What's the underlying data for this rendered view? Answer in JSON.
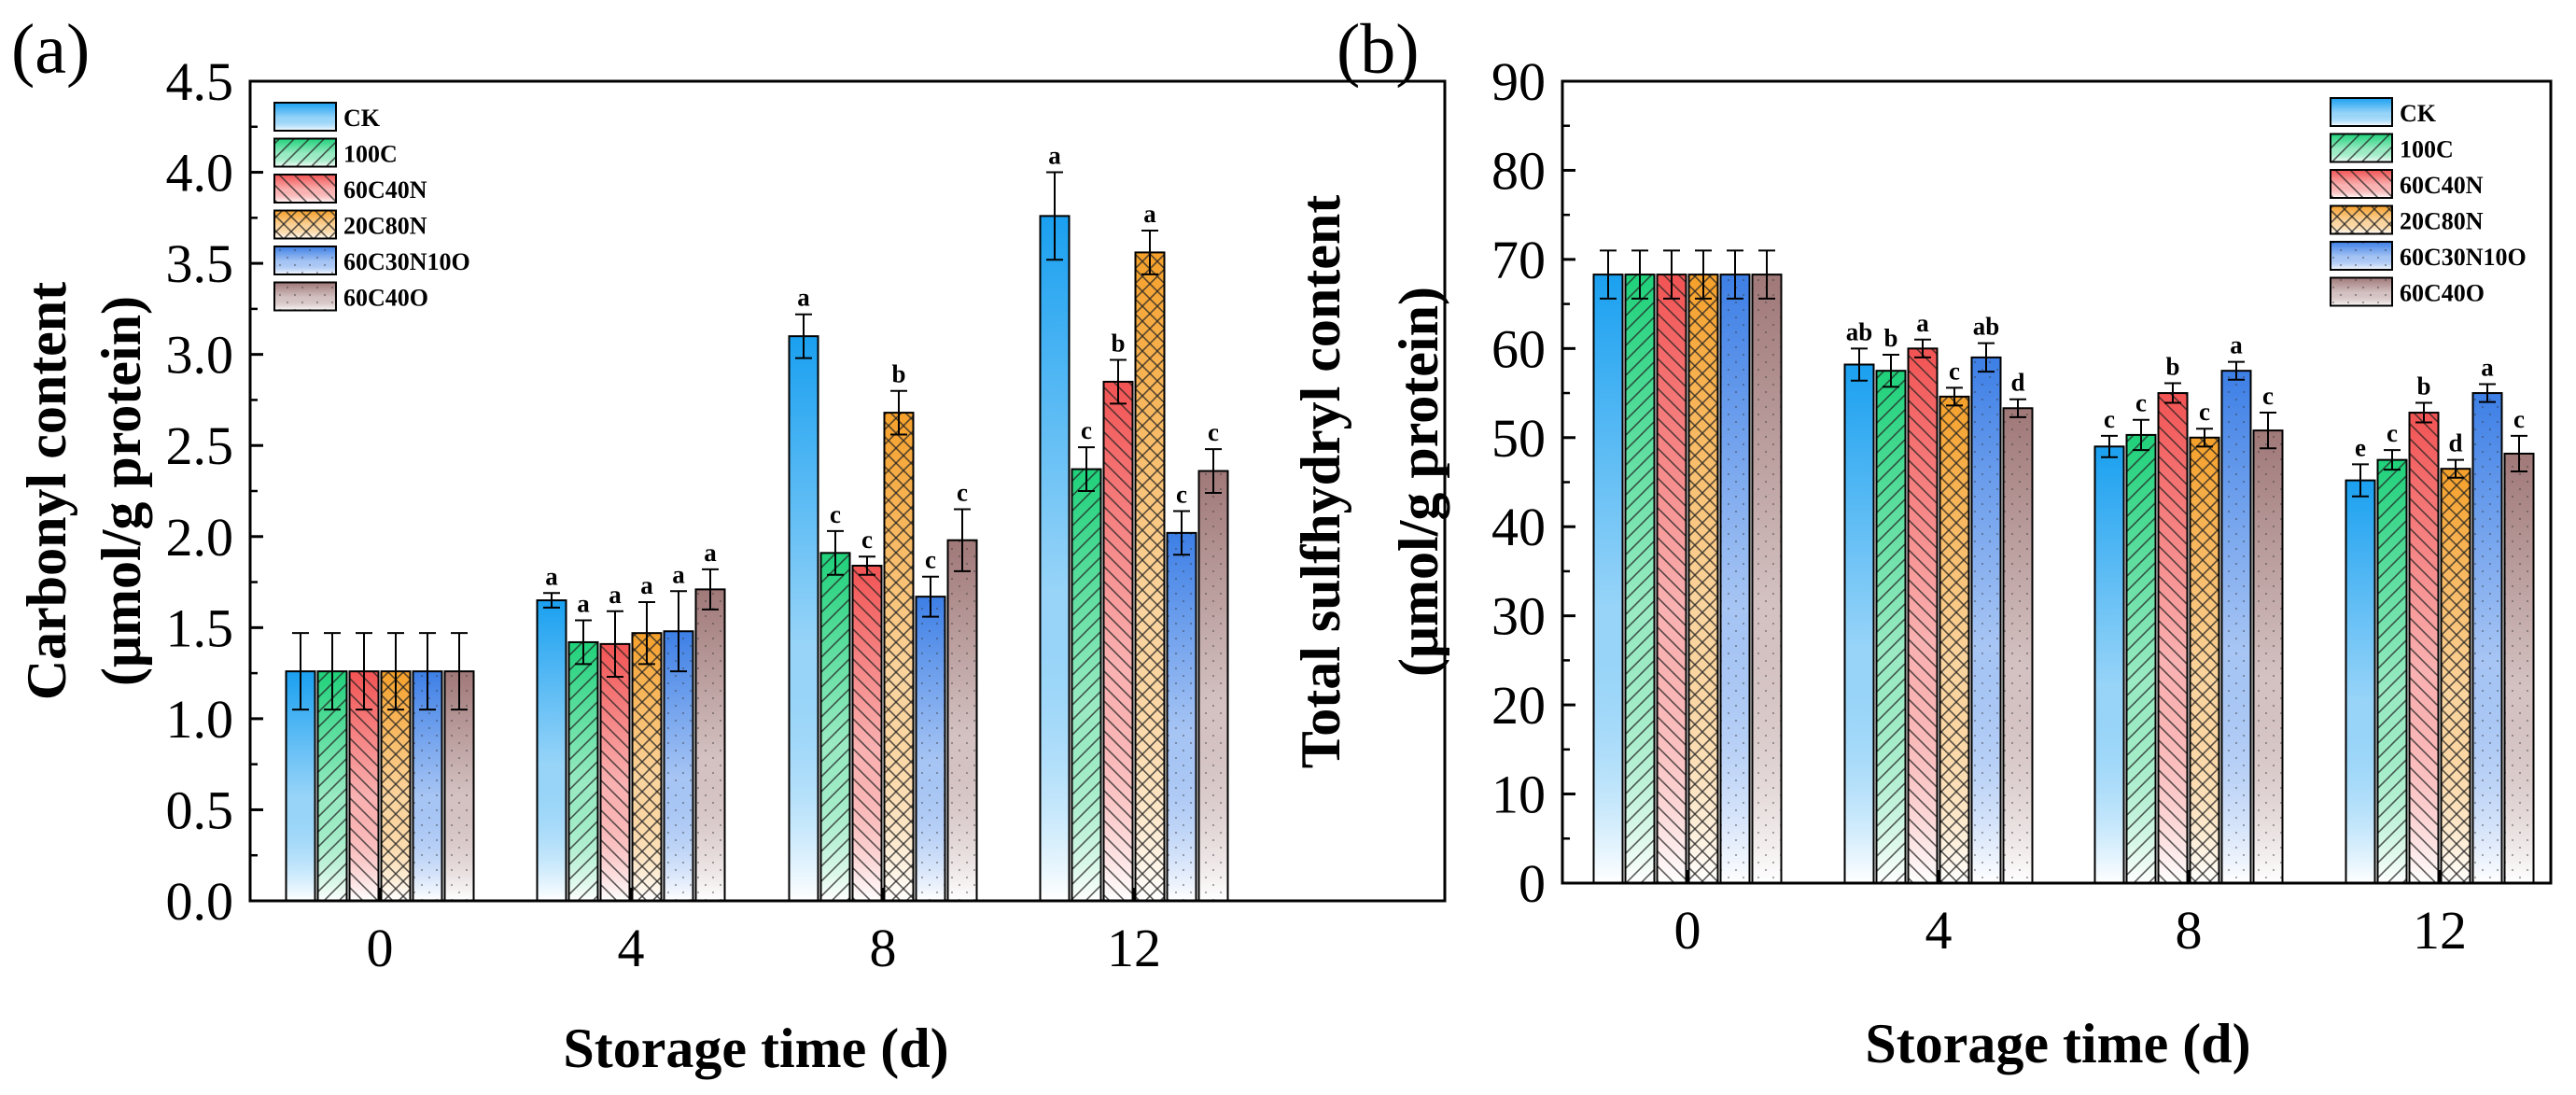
{
  "chart_data": [
    {
      "type": "bar",
      "panel_label": "(a)",
      "xlabel": "Storage time (d)",
      "ylabel_lines": [
        "Carbonyl content",
        "(μmol/g protein)"
      ],
      "ylim": [
        0,
        4.5
      ],
      "yticks": [
        "0.0",
        "0.5",
        "1.0",
        "1.5",
        "2.0",
        "2.5",
        "3.0",
        "3.5",
        "4.0",
        "4.5"
      ],
      "categories": [
        "0",
        "4",
        "8",
        "12"
      ],
      "legend_position": "top-left",
      "series": [
        {
          "name": "CK",
          "values": [
            1.26,
            1.65,
            3.1,
            3.76
          ],
          "errors": [
            0.21,
            0.04,
            0.12,
            0.24
          ],
          "labels": [
            "",
            "a",
            "a",
            "a"
          ]
        },
        {
          "name": "100C",
          "values": [
            1.26,
            1.42,
            1.91,
            2.37
          ],
          "errors": [
            0.21,
            0.12,
            0.12,
            0.12
          ],
          "labels": [
            "",
            "a",
            "c",
            "c"
          ]
        },
        {
          "name": "60C40N",
          "values": [
            1.26,
            1.41,
            1.84,
            2.85
          ],
          "errors": [
            0.21,
            0.18,
            0.05,
            0.12
          ],
          "labels": [
            "",
            "a",
            "c",
            "b"
          ]
        },
        {
          "name": "20C80N",
          "values": [
            1.26,
            1.47,
            2.68,
            3.56
          ],
          "errors": [
            0.21,
            0.17,
            0.12,
            0.12
          ],
          "labels": [
            "",
            "a",
            "b",
            "a"
          ]
        },
        {
          "name": "60C30N10O",
          "values": [
            1.26,
            1.48,
            1.67,
            2.02
          ],
          "errors": [
            0.21,
            0.22,
            0.11,
            0.12
          ],
          "labels": [
            "",
            "a",
            "c",
            "c"
          ]
        },
        {
          "name": "60C40O",
          "values": [
            1.26,
            1.71,
            1.98,
            2.36
          ],
          "errors": [
            0.21,
            0.11,
            0.17,
            0.12
          ],
          "labels": [
            "",
            "a",
            "c",
            "c"
          ]
        }
      ]
    },
    {
      "type": "bar",
      "panel_label": "(b)",
      "xlabel": "Storage time (d)",
      "ylabel_lines": [
        "Total sulfhydryl content",
        "(μmol/g protein)"
      ],
      "ylim": [
        0,
        90
      ],
      "yticks": [
        "0",
        "10",
        "20",
        "30",
        "40",
        "50",
        "60",
        "70",
        "80",
        "90"
      ],
      "categories": [
        "0",
        "4",
        "8",
        "12"
      ],
      "legend_position": "top-right",
      "series": [
        {
          "name": "CK",
          "values": [
            68.3,
            58.2,
            49.0,
            45.2
          ],
          "errors": [
            2.7,
            1.8,
            1.2,
            1.8
          ],
          "labels": [
            "",
            "ab",
            "c",
            "e"
          ]
        },
        {
          "name": "100C",
          "values": [
            68.3,
            57.5,
            50.3,
            47.5
          ],
          "errors": [
            2.7,
            1.8,
            1.7,
            1.1
          ],
          "labels": [
            "",
            "b",
            "c",
            "c"
          ]
        },
        {
          "name": "60C40N",
          "values": [
            68.3,
            60.0,
            55.0,
            52.8
          ],
          "errors": [
            2.7,
            1.0,
            1.1,
            1.1
          ],
          "labels": [
            "",
            "a",
            "b",
            "b"
          ]
        },
        {
          "name": "20C80N",
          "values": [
            68.3,
            54.6,
            50.0,
            46.5
          ],
          "errors": [
            2.7,
            1.0,
            1.0,
            1.0
          ],
          "labels": [
            "",
            "c",
            "c",
            "d"
          ]
        },
        {
          "name": "60C30N10O",
          "values": [
            68.3,
            59.0,
            57.5,
            55.0
          ],
          "errors": [
            2.7,
            1.6,
            1.0,
            1.0
          ],
          "labels": [
            "",
            "ab",
            "a",
            "a"
          ]
        },
        {
          "name": "60C40O",
          "values": [
            68.3,
            53.3,
            50.8,
            48.2
          ],
          "errors": [
            2.7,
            1.0,
            2.0,
            2.0
          ],
          "labels": [
            "",
            "d",
            "c",
            "c"
          ]
        }
      ]
    }
  ],
  "series_colors": [
    "#1aa0f0",
    "#1fd17a",
    "#f25353",
    "#f5a02a",
    "#3d7fe6",
    "#a07878"
  ]
}
